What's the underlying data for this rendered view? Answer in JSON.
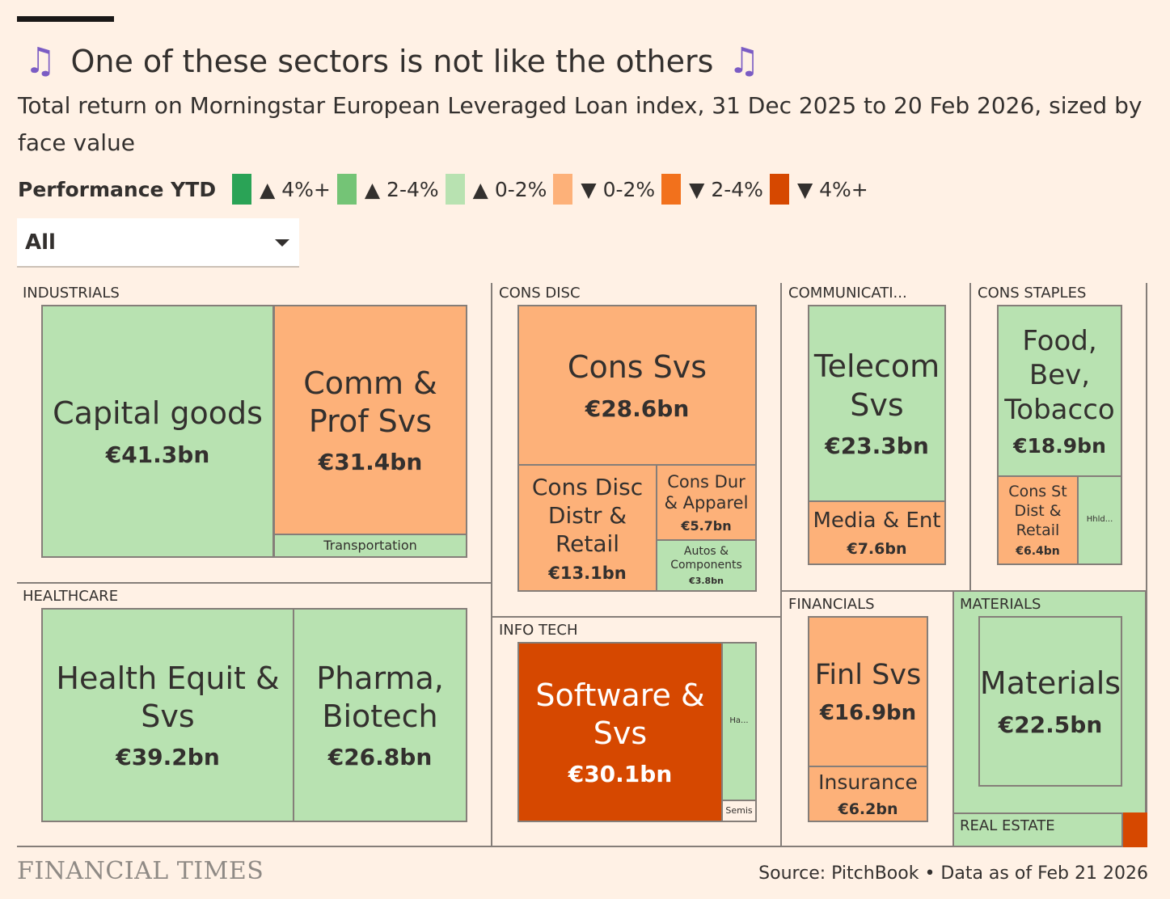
{
  "title": "One of these sectors is not like the others",
  "title_icon": "musical-notes-icon",
  "title_icon_glyph": "♫",
  "subtitle": "Total return on Morningstar European Leveraged Loan index, 31 Dec 2025 to 20 Feb 2026, sized by face value",
  "dropdown": {
    "value": "All"
  },
  "footer": {
    "logo": "FINANCIAL TIMES",
    "source": "Source: PitchBook • Data as of Feb 21 2026"
  },
  "chart_data": {
    "type": "treemap",
    "title": "One of these sectors is not like the others",
    "legend": {
      "title": "Performance YTD",
      "placement": "top-left",
      "items": [
        {
          "label": "▲ 4%+",
          "color": "#2aa356"
        },
        {
          "label": "▲ 2-4%",
          "color": "#74c476"
        },
        {
          "label": "▲ 0-2%",
          "color": "#b8e2b1"
        },
        {
          "label": "▼ 0-2%",
          "color": "#fdb179"
        },
        {
          "label": "▼ 2-4%",
          "color": "#f2711c"
        },
        {
          "label": "▼ 4%+",
          "color": "#d64800"
        }
      ]
    },
    "sectors": [
      {
        "name": "INDUSTRIALS",
        "industries": [
          {
            "name": "Capital goods",
            "value": "€41.3bn",
            "face_value_bn": 41.3,
            "band": "▲ 0-2%"
          },
          {
            "name": "Comm & Prof Svs",
            "value": "€31.4bn",
            "face_value_bn": 31.4,
            "band": "▼ 0-2%"
          },
          {
            "name": "Transportation",
            "value": "",
            "band": "▲ 0-2%"
          }
        ]
      },
      {
        "name": "HEALTHCARE",
        "industries": [
          {
            "name": "Health Equit & Svs",
            "value": "€39.2bn",
            "face_value_bn": 39.2,
            "band": "▲ 0-2%"
          },
          {
            "name": "Pharma, Biotech",
            "value": "€26.8bn",
            "face_value_bn": 26.8,
            "band": "▲ 0-2%"
          }
        ]
      },
      {
        "name": "CONS DISC",
        "industries": [
          {
            "name": "Cons Svs",
            "value": "€28.6bn",
            "face_value_bn": 28.6,
            "band": "▼ 0-2%"
          },
          {
            "name": "Cons Disc Distr & Retail",
            "value": "€13.1bn",
            "face_value_bn": 13.1,
            "band": "▼ 0-2%"
          },
          {
            "name": "Cons Dur & Apparel",
            "value": "€5.7bn",
            "face_value_bn": 5.7,
            "band": "▼ 0-2%"
          },
          {
            "name": "Autos & Components",
            "value": "€3.8bn",
            "face_value_bn": 3.8,
            "band": "▲ 0-2%"
          }
        ]
      },
      {
        "name": "INFO TECH",
        "industries": [
          {
            "name": "Software & Svs",
            "value": "€30.1bn",
            "face_value_bn": 30.1,
            "band": "▼ 4%+"
          },
          {
            "name": "Ha...",
            "value": "",
            "band": "▲ 0-2%"
          },
          {
            "name": "Semis",
            "value": "",
            "band": "none"
          }
        ]
      },
      {
        "name": "COMMUNICATI...",
        "industries": [
          {
            "name": "Telecom Svs",
            "value": "€23.3bn",
            "face_value_bn": 23.3,
            "band": "▲ 0-2%"
          },
          {
            "name": "Media & Ent",
            "value": "€7.6bn",
            "face_value_bn": 7.6,
            "band": "▼ 0-2%"
          }
        ]
      },
      {
        "name": "CONS STAPLES",
        "industries": [
          {
            "name": "Food, Bev, Tobacco",
            "value": "€18.9bn",
            "face_value_bn": 18.9,
            "band": "▲ 0-2%"
          },
          {
            "name": "Cons St Dist & Retail",
            "value": "€6.4bn",
            "face_value_bn": 6.4,
            "band": "▼ 0-2%"
          },
          {
            "name": "Hhld...",
            "value": "",
            "band": "▲ 0-2%"
          }
        ]
      },
      {
        "name": "FINANCIALS",
        "industries": [
          {
            "name": "Finl Svs",
            "value": "€16.9bn",
            "face_value_bn": 16.9,
            "band": "▼ 0-2%"
          },
          {
            "name": "Insurance",
            "value": "€6.2bn",
            "face_value_bn": 6.2,
            "band": "▼ 0-2%"
          }
        ]
      },
      {
        "name": "MATERIALS",
        "industries": [
          {
            "name": "Materials",
            "value": "€22.5bn",
            "face_value_bn": 22.5,
            "band": "▲ 0-2%"
          }
        ]
      },
      {
        "name": "REAL ESTATE",
        "industries": [
          {
            "name": "Real estate",
            "value": "",
            "band": "▼ 4%+"
          }
        ]
      }
    ]
  }
}
